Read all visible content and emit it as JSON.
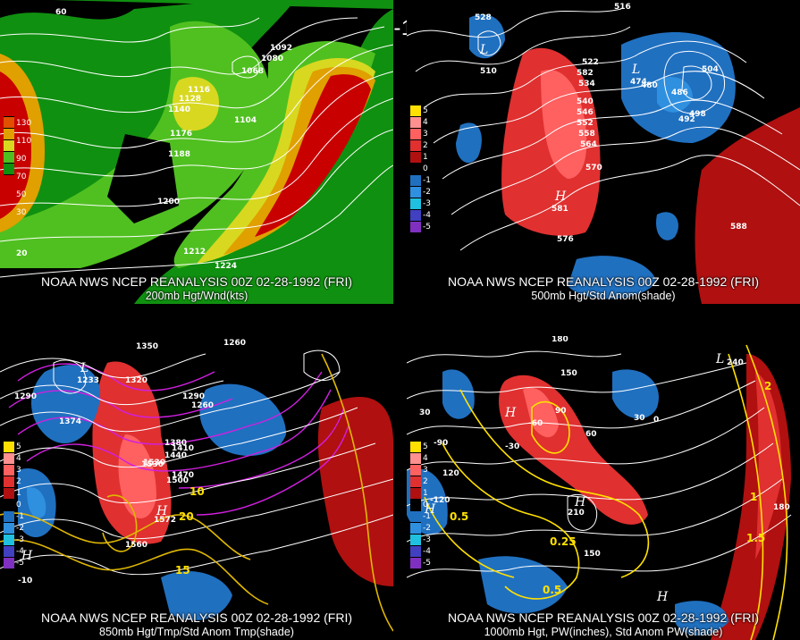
{
  "title": "00Z 02-28-1992 (FRI)",
  "header": "NOAA NWS NCEP REANALYSIS 00Z 02-28-1992 (FRI)",
  "panels": {
    "tl": {
      "caption": "200mb Hgt/Wnd(kts)",
      "legend": [
        "130",
        "110",
        "90",
        "70",
        "50",
        "30"
      ],
      "legend_colors": [
        "#c80000",
        "#e05000",
        "#e0a000",
        "#d8d820",
        "#50c020",
        "#109010"
      ],
      "labels": [
        "1092",
        "1080",
        "1068",
        "1116",
        "1128",
        "1140",
        "1104",
        "1176",
        "1188",
        "1200",
        "1212",
        "1224",
        "60",
        "20"
      ]
    },
    "tr": {
      "caption": "500mb Hgt/Std Anom(shade)",
      "legend": [
        "5",
        "4",
        "3",
        "2",
        "1",
        "0",
        "-1",
        "-2",
        "-3",
        "-4",
        "-5"
      ],
      "labels": [
        "528",
        "510",
        "516",
        "504",
        "480",
        "486",
        "492",
        "498",
        "534",
        "540",
        "546",
        "552",
        "558",
        "564",
        "570",
        "576",
        "588",
        "582",
        "522",
        "474",
        "581"
      ]
    },
    "bl": {
      "caption": "850mb Hgt/Tmp/Std Anom Tmp(shade)",
      "legend": [
        "5",
        "4",
        "3",
        "2",
        "1",
        "0",
        "-1",
        "-2",
        "-3",
        "-4",
        "-5"
      ],
      "labels": [
        "1350",
        "1260",
        "1290",
        "1320",
        "1410",
        "1380",
        "1440",
        "1470",
        "1500",
        "1530",
        "1560",
        "1290",
        "1260",
        "1233",
        "1374",
        "1530",
        "1572",
        "10",
        "20",
        "15",
        "-10"
      ]
    },
    "br": {
      "caption": "1000mb Hgt, PW(inches), Std Anom PW(shade)",
      "legend": [
        "5",
        "4",
        "3",
        "2",
        "1",
        "0",
        "-1",
        "-2",
        "-3",
        "-4",
        "-5"
      ],
      "labels": [
        "180",
        "150",
        "120",
        "90",
        "60",
        "30",
        "0",
        "-30",
        "-60",
        "-90",
        "-120",
        "210",
        "0.5",
        "0.25",
        "0.5",
        "1",
        "1.5",
        "2",
        "240",
        "180",
        "150",
        "30"
      ]
    }
  },
  "colors": {
    "pos1": "#ff6060",
    "pos2": "#e03030",
    "pos3": "#b01010",
    "neg1": "#2070c0",
    "neg2": "#3090e0",
    "neg3": "#20c0e0",
    "neg4": "#8030c0"
  }
}
